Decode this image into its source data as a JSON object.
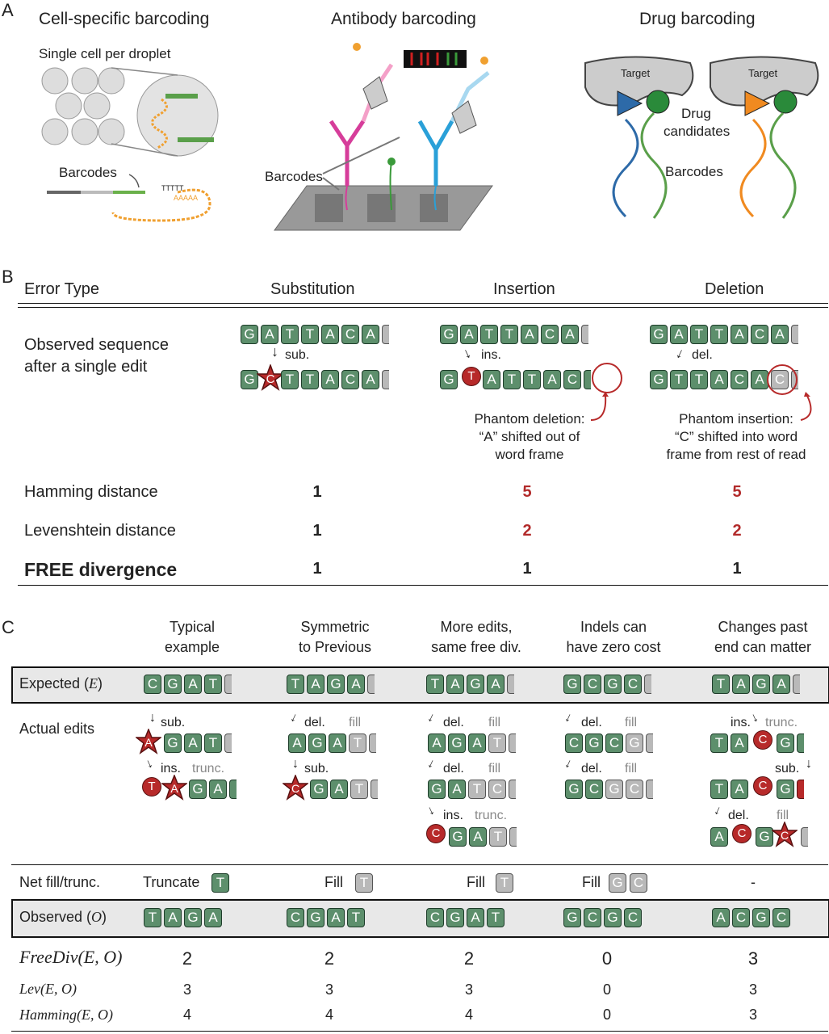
{
  "panelA": {
    "letter": "A",
    "cell": {
      "title": "Cell-specific barcoding",
      "droplet": "Single cell per droplet",
      "barcodes": "Barcodes",
      "polyT": "TTTTT",
      "polyA": "AAAAA"
    },
    "antibody": {
      "title": "Antibody barcoding",
      "barcodes": "Barcodes"
    },
    "drug": {
      "title": "Drug barcoding",
      "target1": "Target",
      "target2": "Target",
      "drug": "Drug",
      "candidates": "candidates",
      "barcodes": "Barcodes"
    }
  },
  "panelB": {
    "letter": "B",
    "headers": {
      "error_type": "Error Type",
      "sub": "Substitution",
      "ins": "Insertion",
      "del": "Deletion"
    },
    "observed_label_1": "Observed sequence",
    "observed_label_2": "after a single edit",
    "sub_label": "sub.",
    "ins_label": "ins.",
    "del_label": "del.",
    "phantom_del": [
      "Phantom deletion:",
      "“A” shifted out of",
      "word frame"
    ],
    "phantom_ins": [
      "Phantom insertion:",
      "“C” shifted into word",
      "frame from rest of read"
    ],
    "rows": [
      {
        "label": "Hamming distance",
        "sub": "1",
        "ins": "5",
        "del": "5"
      },
      {
        "label": "Levenshtein distance",
        "sub": "1",
        "ins": "2",
        "del": "2"
      },
      {
        "label": "FREE divergence",
        "sub": "1",
        "ins": "1",
        "del": "1"
      }
    ],
    "colors": {
      "red": "#b22a2a",
      "tile_green": "#5d8f6c"
    }
  },
  "panelC": {
    "letter": "C",
    "cols": [
      {
        "h1": "Typical",
        "h2": "example"
      },
      {
        "h1": "Symmetric",
        "h2": "to Previous"
      },
      {
        "h1": "More edits,",
        "h2": "same free div."
      },
      {
        "h1": "Indels can",
        "h2": "have zero cost"
      },
      {
        "h1": "Changes past",
        "h2": "end can matter"
      }
    ],
    "expected_label": "Expected (",
    "expected_var": "E",
    "close_paren": ")",
    "actual_label": "Actual edits",
    "net_label": "Net fill/trunc.",
    "net": [
      "Truncate",
      "Fill",
      "Fill",
      "Fill",
      "-"
    ],
    "observed_label": "Observed (",
    "observed_var": "O",
    "edit_words": {
      "sub": "sub.",
      "ins": "ins.",
      "del": "del.",
      "fill": "fill",
      "trunc": "trunc."
    },
    "metrics": [
      {
        "label": "FreeDiv(E, O)",
        "values": [
          "2",
          "2",
          "2",
          "0",
          "3"
        ]
      },
      {
        "label": "Lev(E, O)",
        "values": [
          "3",
          "3",
          "3",
          "0",
          "3"
        ]
      },
      {
        "label": "Hamming(E, O)",
        "values": [
          "4",
          "4",
          "4",
          "0",
          "3"
        ]
      }
    ]
  }
}
